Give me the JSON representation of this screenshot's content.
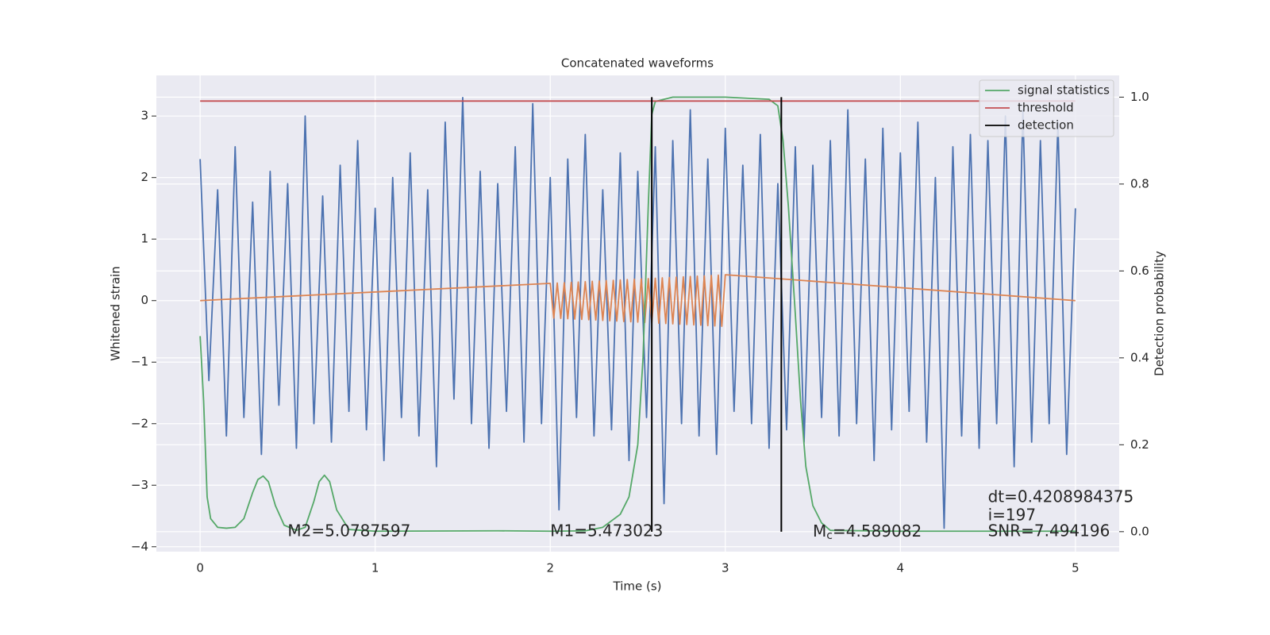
{
  "chart_data": {
    "type": "line",
    "title": "Concatenated waveforms",
    "xlabel": "Time (s)",
    "ylabel": "Whitened strain",
    "y2label": "Detection probability",
    "xlim": [
      -0.25,
      5.25
    ],
    "ylim": [
      -4.08,
      3.66
    ],
    "y2lim": [
      -0.046,
      1.05
    ],
    "xticks": [
      0,
      1,
      2,
      3,
      4,
      5
    ],
    "yticks": [
      {
        "value": -4,
        "label": "−4"
      },
      {
        "value": -3,
        "label": "−3"
      },
      {
        "value": -2,
        "label": "−2"
      },
      {
        "value": -1,
        "label": "−1"
      },
      0,
      1,
      2,
      3
    ],
    "y2ticks": [
      {
        "value": 0,
        "label": "0.0"
      },
      0.2,
      0.4,
      0.6,
      0.8,
      {
        "value": 1,
        "label": "1.0"
      }
    ],
    "grid": true,
    "legend": "upper right",
    "x": [
      0,
      0.05,
      0.1,
      0.15,
      0.2,
      0.25,
      0.3,
      0.35,
      0.4,
      0.45,
      0.5,
      0.55,
      0.6,
      0.65,
      0.7,
      0.75,
      0.8,
      0.85,
      0.9,
      0.95,
      1,
      1.05,
      1.1,
      1.15,
      1.2,
      1.25,
      1.3,
      1.35,
      1.4,
      1.45,
      1.5,
      1.55,
      1.6,
      1.65,
      1.7,
      1.75,
      1.8,
      1.85,
      1.9,
      1.95,
      2,
      2.05,
      2.1,
      2.15,
      2.2,
      2.25,
      2.3,
      2.35,
      2.4,
      2.45,
      2.5,
      2.55,
      2.6,
      2.65,
      2.7,
      2.75,
      2.8,
      2.85,
      2.9,
      2.95,
      3,
      3.05,
      3.1,
      3.15,
      3.2,
      3.25,
      3.3,
      3.35,
      3.4,
      3.45,
      3.5,
      3.55,
      3.6,
      3.65,
      3.7,
      3.75,
      3.8,
      3.85,
      3.9,
      3.95,
      4,
      4.05,
      4.1,
      4.15,
      4.2,
      4.25,
      4.3,
      4.35,
      4.4,
      4.45,
      4.5,
      4.55,
      4.6,
      4.65,
      4.7,
      4.75,
      4.8,
      4.85,
      4.9,
      4.95,
      5
    ],
    "series": [
      {
        "color": "#4c72b0",
        "values": [
          2.3,
          -1.3,
          1.8,
          -2.2,
          2.5,
          -1.9,
          1.6,
          -2.5,
          2.1,
          -1.7,
          1.9,
          -2.4,
          3.0,
          -2.0,
          1.7,
          -2.3,
          2.2,
          -1.8,
          2.6,
          -2.1,
          1.5,
          -2.6,
          2.0,
          -1.9,
          2.4,
          -2.2,
          1.8,
          -2.7,
          2.9,
          -1.6,
          3.3,
          -2.0,
          2.1,
          -2.4,
          1.9,
          -1.8,
          2.5,
          -2.3,
          3.2,
          -2.0,
          2.0,
          -3.4,
          2.3,
          -1.9,
          2.7,
          -2.2,
          1.8,
          -2.1,
          2.4,
          -2.6,
          2.1,
          -1.9,
          2.5,
          -3.3,
          2.6,
          -2.0,
          3.1,
          -2.2,
          2.3,
          -2.5,
          2.8,
          -1.8,
          2.2,
          -2.0,
          2.7,
          -2.4,
          1.9,
          -2.1,
          2.5,
          -2.3,
          2.2,
          -1.9,
          2.6,
          -2.2,
          3.1,
          -2.0,
          2.3,
          -2.6,
          2.8,
          -2.1,
          2.4,
          -1.8,
          2.9,
          -2.3,
          2.0,
          -3.7,
          2.5,
          -2.2,
          2.7,
          -2.4,
          2.6,
          -2.0,
          3.0,
          -2.7,
          3.1,
          -2.3,
          2.6,
          -2.0,
          2.9,
          -2.5,
          1.5
        ]
      },
      {
        "color": "#dd8452",
        "x": [
          0,
          2,
          2.02,
          2.04,
          2.06,
          2.08,
          2.1,
          2.12,
          2.14,
          2.16,
          2.18,
          2.2,
          2.22,
          2.24,
          2.26,
          2.28,
          2.3,
          2.32,
          2.34,
          2.36,
          2.38,
          2.4,
          2.42,
          2.44,
          2.46,
          2.48,
          2.5,
          2.52,
          2.54,
          2.56,
          2.58,
          2.6,
          2.62,
          2.64,
          2.66,
          2.68,
          2.7,
          2.72,
          2.74,
          2.76,
          2.78,
          2.8,
          2.82,
          2.84,
          2.86,
          2.88,
          2.9,
          2.92,
          2.94,
          2.96,
          2.98,
          3,
          5
        ],
        "values": [
          0,
          0.28,
          -0.283,
          0.286,
          -0.288,
          0.291,
          -0.294,
          0.297,
          -0.3,
          0.302,
          -0.305,
          0.308,
          -0.311,
          0.314,
          -0.316,
          0.319,
          -0.322,
          0.325,
          -0.328,
          0.33,
          -0.333,
          0.336,
          -0.339,
          0.342,
          -0.344,
          0.347,
          -0.35,
          0.353,
          -0.356,
          0.358,
          -0.361,
          0.364,
          -0.367,
          0.37,
          -0.372,
          0.375,
          -0.378,
          0.381,
          -0.384,
          0.386,
          -0.389,
          0.392,
          -0.395,
          0.398,
          -0.4,
          0.403,
          -0.406,
          0.409,
          -0.412,
          0.414,
          -0.417,
          0.42,
          0
        ]
      },
      {
        "name": "signal statistics",
        "color": "#55a868",
        "axis": "y2",
        "x": [
          0,
          0.02,
          0.04,
          0.06,
          0.1,
          0.15,
          0.2,
          0.25,
          0.3,
          0.33,
          0.36,
          0.39,
          0.43,
          0.48,
          0.55,
          0.6,
          0.65,
          0.68,
          0.71,
          0.74,
          0.78,
          0.85,
          1,
          1.7,
          2,
          2.2,
          2.3,
          2.4,
          2.45,
          2.5,
          2.53,
          2.56,
          2.58,
          2.6,
          2.7,
          3,
          3.25,
          3.3,
          3.33,
          3.36,
          3.4,
          3.43,
          3.46,
          3.5,
          3.55,
          3.6,
          4,
          5
        ],
        "values": [
          0.45,
          0.3,
          0.08,
          0.03,
          0.01,
          0.008,
          0.01,
          0.03,
          0.09,
          0.12,
          0.128,
          0.115,
          0.06,
          0.015,
          0.003,
          0.01,
          0.07,
          0.115,
          0.13,
          0.115,
          0.05,
          0.005,
          0.001,
          0.002,
          0.001,
          0.002,
          0.01,
          0.04,
          0.08,
          0.2,
          0.4,
          0.75,
          0.96,
          0.99,
          1.0,
          1.0,
          0.995,
          0.98,
          0.9,
          0.75,
          0.5,
          0.3,
          0.15,
          0.06,
          0.02,
          0.003,
          0.001,
          0.001
        ]
      },
      {
        "name": "threshold",
        "color": "#c44e52",
        "axis": "y2",
        "x": [
          0,
          5
        ],
        "values": [
          0.991,
          0.991
        ]
      },
      {
        "name": "detection",
        "color": "#000000",
        "axis": "y2",
        "type": "vline",
        "x": [
          2.58,
          3.32
        ],
        "values": [
          1.0,
          1.0
        ]
      }
    ],
    "annotations": [
      {
        "text": "M2=5.0787597",
        "x": 0.5,
        "y": -3.76
      },
      {
        "text": "M1=5.473023",
        "x": 2.0,
        "y": -3.76
      },
      {
        "text": "Mc=4.589082",
        "x": 3.5,
        "y": -3.76
      },
      {
        "text": "dt=0.4208984375",
        "x": 4.5,
        "y": -3.2
      },
      {
        "text": " i=197",
        "x": 4.5,
        "y": -3.5
      },
      {
        "text": "SNR=7.494196",
        "x": 4.5,
        "y": -3.76
      }
    ]
  }
}
